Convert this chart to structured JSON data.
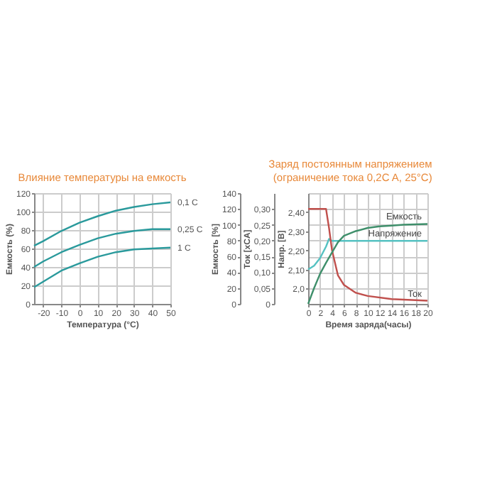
{
  "chart_data": [
    {
      "type": "line",
      "title": "Влияние температуры на емкость",
      "xlabel": "Температура (°C)",
      "ylabel": "Емкость (%)",
      "xlim": [
        -25,
        50
      ],
      "xticks": [
        -20,
        -10,
        0,
        10,
        20,
        30,
        40,
        50
      ],
      "ylim": [
        0,
        120
      ],
      "yticks": [
        0,
        20,
        40,
        60,
        80,
        100,
        120
      ],
      "grid": true,
      "x": [
        -25,
        -20,
        -10,
        0,
        10,
        20,
        30,
        40,
        50
      ],
      "series": [
        {
          "name": "0,1 C",
          "color": "#2a9a9c",
          "values": [
            63,
            68,
            79,
            88,
            95,
            101,
            105,
            108,
            110
          ]
        },
        {
          "name": "0,25 C",
          "color": "#2a9a9c",
          "values": [
            40,
            46,
            56,
            64,
            71,
            76,
            79,
            81,
            81
          ]
        },
        {
          "name": "1 C",
          "color": "#2a9a9c",
          "values": [
            18,
            24,
            36,
            44,
            51,
            56,
            59,
            60,
            61
          ]
        }
      ]
    },
    {
      "type": "line",
      "title": "Заряд постоянным напряжением\n(ограничение тока 0,2C A, 25°C)",
      "xlabel": "Время заряда(часы)",
      "ylabel": "Напр. [В]",
      "y2label": "Ток [xCA]",
      "y3label": "Емкость [%]",
      "xlim": [
        0,
        20
      ],
      "xticks": [
        0,
        2,
        4,
        6,
        8,
        10,
        12,
        14,
        16,
        18,
        20
      ],
      "y3lim": [
        0,
        140
      ],
      "y3ticks": [
        0,
        20,
        40,
        60,
        80,
        100,
        120,
        140
      ],
      "y2lim": [
        0,
        0.35
      ],
      "y2ticks": [
        0,
        {
          "value": 0.05,
          "label": "0,05"
        },
        {
          "value": 0.1,
          "label": "0,10"
        },
        {
          "value": 0.15,
          "label": "0,15"
        },
        {
          "value": 0.2,
          "label": "0,20"
        },
        {
          "value": 0.25,
          "label": "0,25"
        },
        {
          "value": 0.3,
          "label": "0,30"
        }
      ],
      "ylim": [
        1.92,
        2.5
      ],
      "yticks": [
        {
          "value": 2.0,
          "label": "2,0"
        },
        {
          "value": 2.1,
          "label": "2,10"
        },
        {
          "value": 2.2,
          "label": "2,20"
        },
        {
          "value": 2.3,
          "label": "2,30"
        },
        {
          "value": 2.4,
          "label": "2,40"
        }
      ],
      "grid": true,
      "series": [
        {
          "name": "Емкость",
          "color": "#3f8f6b",
          "axis": "y3",
          "x": [
            0,
            1,
            2,
            3,
            4,
            5,
            6,
            8,
            10,
            12,
            14,
            16,
            20
          ],
          "values": [
            0,
            20,
            38,
            52,
            65,
            78,
            86,
            92,
            96,
            98,
            99,
            100,
            101
          ]
        },
        {
          "name": "Напряжение",
          "color": "#55c2c2",
          "x": [
            0,
            1,
            2,
            3,
            3.5,
            4,
            5,
            8,
            20
          ],
          "values": [
            2.1,
            2.12,
            2.16,
            2.22,
            2.26,
            2.25,
            2.25,
            2.25,
            2.25
          ]
        },
        {
          "name": "Ток",
          "color": "#c0504d",
          "axis": "y2",
          "x": [
            0,
            3,
            3.5,
            4,
            5,
            6,
            8,
            10,
            14,
            20
          ],
          "values": [
            0.3,
            0.3,
            0.24,
            0.17,
            0.09,
            0.06,
            0.035,
            0.025,
            0.015,
            0.01
          ]
        }
      ]
    }
  ]
}
